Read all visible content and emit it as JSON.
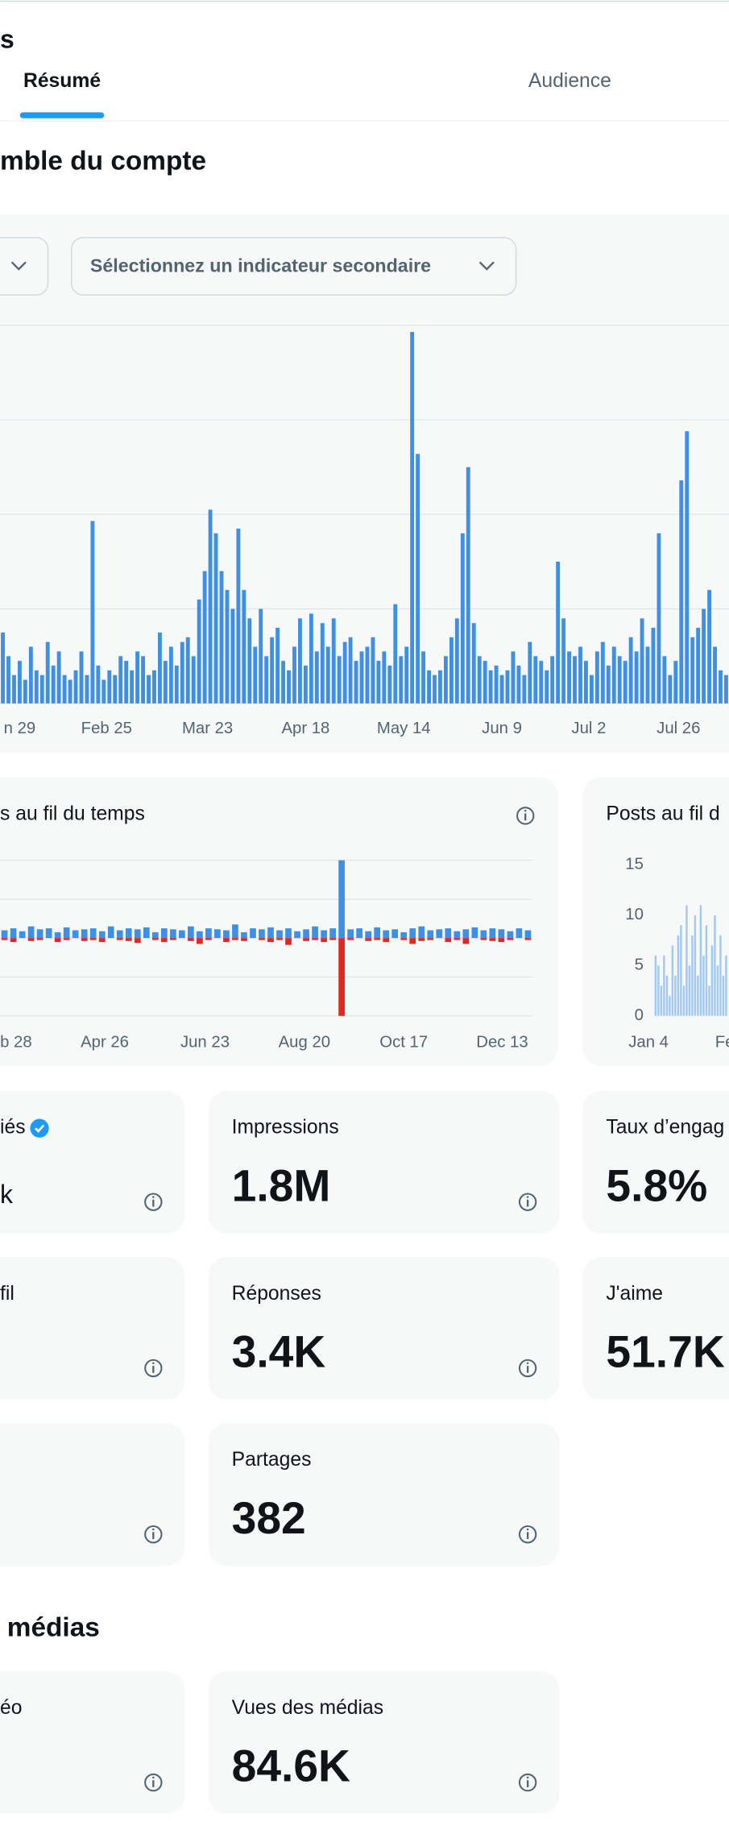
{
  "header": {
    "title": "s",
    "tabs": [
      "Résumé",
      "Audience"
    ]
  },
  "overview": {
    "title": "mble du compte",
    "secondary_select": "Sélectionnez un indicateur secondaire"
  },
  "chart_data": [
    {
      "type": "bar",
      "color": "#3f8fe5",
      "xlim": [
        -0.5,
        129.5
      ],
      "ylim": [
        0,
        4
      ],
      "ygrid": [
        0,
        1,
        2,
        3,
        4
      ],
      "xticks": [
        {
          "value": 3,
          "label": "n 29"
        },
        {
          "value": 18.5,
          "label": "Feb 25"
        },
        {
          "value": 36.5,
          "label": "Mar 23"
        },
        {
          "value": 54,
          "label": "Apr 18"
        },
        {
          "value": 71.5,
          "label": "May 14"
        },
        {
          "value": 89,
          "label": "Jun 9"
        },
        {
          "value": 104.5,
          "label": "Jul 2"
        },
        {
          "value": 120.5,
          "label": "Jul 26"
        }
      ],
      "values": [
        0.75,
        0.5,
        0.3,
        0.45,
        0.25,
        0.6,
        0.35,
        0.3,
        0.65,
        0.4,
        0.55,
        0.3,
        0.25,
        0.35,
        0.55,
        0.3,
        1.93,
        0.4,
        0.25,
        0.35,
        0.3,
        0.5,
        0.45,
        0.35,
        0.55,
        0.5,
        0.3,
        0.35,
        0.75,
        0.45,
        0.6,
        0.4,
        0.65,
        0.7,
        0.5,
        1.1,
        1.4,
        2.05,
        1.8,
        1.4,
        1.2,
        1.0,
        1.85,
        1.2,
        0.9,
        0.6,
        1.0,
        0.5,
        0.7,
        0.8,
        0.45,
        0.35,
        0.6,
        0.9,
        0.4,
        0.95,
        0.55,
        0.85,
        0.6,
        0.9,
        0.5,
        0.65,
        0.7,
        0.45,
        0.55,
        0.6,
        0.7,
        0.45,
        0.55,
        0.4,
        1.05,
        0.5,
        0.6,
        3.93,
        2.64,
        0.55,
        0.35,
        0.3,
        0.35,
        0.5,
        0.7,
        0.9,
        1.8,
        2.5,
        0.85,
        0.5,
        0.45,
        0.35,
        0.4,
        0.3,
        0.35,
        0.55,
        0.4,
        0.3,
        0.65,
        0.5,
        0.45,
        0.35,
        0.5,
        1.5,
        0.9,
        0.55,
        0.5,
        0.6,
        0.45,
        0.3,
        0.55,
        0.65,
        0.4,
        0.6,
        0.5,
        0.45,
        0.7,
        0.55,
        0.9,
        0.6,
        0.8,
        1.8,
        0.5,
        0.3,
        0.45,
        2.36,
        2.88,
        0.7,
        0.8,
        1.0,
        1.2,
        0.6,
        0.35,
        0.3
      ]
    },
    {
      "type": "bar",
      "title": "s au fil du temps",
      "xlim": [
        -0.5,
        59.5
      ],
      "ylim": [
        -4,
        4
      ],
      "ygrid": [
        -4,
        -2,
        0,
        2,
        4
      ],
      "xticks": [
        {
          "value": 1.3,
          "label": "b 28"
        },
        {
          "value": 11.3,
          "label": "Apr 26"
        },
        {
          "value": 22.6,
          "label": "Jun 23"
        },
        {
          "value": 33.8,
          "label": "Aug 20"
        },
        {
          "value": 45,
          "label": "Oct 17"
        },
        {
          "value": 56.1,
          "label": "Dec 13"
        }
      ],
      "series": [
        {
          "color": "#3f8fe5",
          "values": [
            0.4,
            0.5,
            0.35,
            0.6,
            0.45,
            0.5,
            0.3,
            0.55,
            0.4,
            0.45,
            0.5,
            0.35,
            0.6,
            0.4,
            0.5,
            0.45,
            0.55,
            0.3,
            0.5,
            0.45,
            0.4,
            0.6,
            0.35,
            0.5,
            0.45,
            0.4,
            0.7,
            0.3,
            0.5,
            0.45,
            0.55,
            0.4,
            0.5,
            0.35,
            0.45,
            0.6,
            0.4,
            0.5,
            4.0,
            0.45,
            0.5,
            0.35,
            0.55,
            0.4,
            0.45,
            0.3,
            0.5,
            0.6,
            0.4,
            0.45,
            0.5,
            0.35,
            0.45,
            0.55,
            0.4,
            0.5,
            0.45,
            0.35,
            0.5,
            0.4
          ]
        },
        {
          "color": "#e0281f",
          "values": [
            -0.1,
            -0.2,
            0,
            -0.15,
            -0.1,
            0,
            -0.2,
            -0.1,
            0,
            -0.15,
            -0.1,
            -0.2,
            0,
            -0.1,
            -0.15,
            -0.25,
            0,
            -0.1,
            -0.2,
            -0.1,
            0,
            -0.15,
            -0.3,
            -0.1,
            0,
            -0.2,
            -0.1,
            -0.15,
            0,
            -0.1,
            -0.2,
            -0.1,
            -0.35,
            0,
            -0.15,
            -0.1,
            -0.2,
            -0.1,
            -4.0,
            -0.1,
            0,
            -0.15,
            -0.1,
            -0.2,
            0,
            -0.1,
            -0.3,
            -0.15,
            -0.1,
            0,
            -0.2,
            -0.1,
            -0.3,
            0,
            -0.1,
            -0.15,
            -0.2,
            -0.1,
            0,
            -0.1
          ]
        }
      ]
    },
    {
      "type": "bar",
      "title": "Posts au fil d",
      "color": "#a3c9f2",
      "xlim": [
        -8,
        26
      ],
      "ylim": [
        0,
        15
      ],
      "yticks": [
        0,
        5,
        10,
        15
      ],
      "xticks": [
        {
          "value": -2.5,
          "label": "Jan 4"
        },
        {
          "value": 24.5,
          "label": "Fe"
        }
      ],
      "values": [
        6,
        5,
        3,
        6,
        4,
        2,
        7,
        4,
        8,
        9,
        3,
        11,
        5,
        8,
        10,
        4,
        11,
        6,
        9,
        3,
        7,
        10,
        5,
        8,
        4,
        6
      ]
    }
  ],
  "cards": [
    {
      "label": "iés",
      "value": "k"
    },
    {
      "label": "Impressions",
      "value": "1.8M"
    },
    {
      "label": "Taux d’engag",
      "value": "5.8%"
    },
    {
      "label": "fil"
    },
    {
      "label": "Réponses",
      "value": "3.4K"
    },
    {
      "label": "J'aime",
      "value": "51.7K"
    },
    {
      "label": "Partages",
      "value": "382"
    }
  ],
  "media": {
    "title": "médias",
    "cards": [
      {
        "label": "éo"
      },
      {
        "label": "Vues des médias",
        "value": "84.6K"
      }
    ]
  }
}
